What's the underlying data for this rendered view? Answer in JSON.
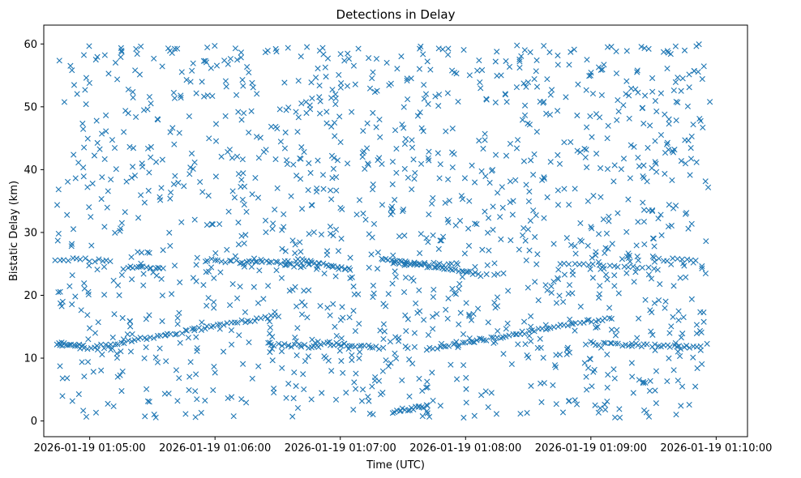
{
  "chart_data": {
    "type": "scatter",
    "title": "Detections in Delay",
    "xlabel": "Time (UTC)",
    "ylabel": "Bistatic Delay (km)",
    "marker": "x",
    "color": "#1f77b4",
    "xlim_seconds": [
      -22,
      315
    ],
    "ylim": [
      -2.5,
      63
    ],
    "x_ticks": [
      {
        "value": 0,
        "label": "2026-01-19 01:05:00"
      },
      {
        "value": 60,
        "label": "2026-01-19 01:06:00"
      },
      {
        "value": 120,
        "label": "2026-01-19 01:07:00"
      },
      {
        "value": 180,
        "label": "2026-01-19 01:08:00"
      },
      {
        "value": 240,
        "label": "2026-01-19 01:09:00"
      },
      {
        "value": 300,
        "label": "2026-01-19 01:10:00"
      }
    ],
    "y_ticks": [
      {
        "value": 0,
        "label": "0"
      },
      {
        "value": 10,
        "label": "10"
      },
      {
        "value": 20,
        "label": "20"
      },
      {
        "value": 30,
        "label": "30"
      },
      {
        "value": 40,
        "label": "40"
      },
      {
        "value": 50,
        "label": "50"
      },
      {
        "value": 60,
        "label": "60"
      }
    ],
    "x_range_seconds": [
      -16,
      297
    ],
    "y_range_clutter": [
      0.5,
      60
    ],
    "clutter_count": 1400,
    "tracks": [
      {
        "name": "track-low-1",
        "t_start": -16,
        "t_end": -4,
        "y_start": 12.2,
        "y_end": 12.0,
        "count": 14
      },
      {
        "name": "track-low-2",
        "t_start": -4,
        "t_end": 90,
        "y_start": 11.4,
        "y_end": 16.8,
        "count": 60
      },
      {
        "name": "track-low-3",
        "t_start": 85,
        "t_end": 110,
        "y_start": 12.2,
        "y_end": 11.8,
        "count": 16
      },
      {
        "name": "track-low-4",
        "t_start": 108,
        "t_end": 140,
        "y_start": 12.5,
        "y_end": 11.6,
        "count": 24
      },
      {
        "name": "track-near-zero",
        "t_start": 145,
        "t_end": 162,
        "y_start": 1.5,
        "y_end": 2.4,
        "count": 18
      },
      {
        "name": "track-low-5",
        "t_start": 163,
        "t_end": 250,
        "y_start": 11.4,
        "y_end": 16.5,
        "count": 58
      },
      {
        "name": "track-low-6",
        "t_start": 238,
        "t_end": 292,
        "y_start": 12.4,
        "y_end": 11.7,
        "count": 36
      },
      {
        "name": "track-mid-1",
        "t_start": -16,
        "t_end": 10,
        "y_start": 25.8,
        "y_end": 25.5,
        "count": 14
      },
      {
        "name": "track-mid-2",
        "t_start": 18,
        "t_end": 35,
        "y_start": 24.6,
        "y_end": 24.3,
        "count": 14
      },
      {
        "name": "track-mid-3",
        "t_start": 55,
        "t_end": 80,
        "y_start": 25.6,
        "y_end": 25.2,
        "count": 16
      },
      {
        "name": "track-mid-4",
        "t_start": 80,
        "t_end": 102,
        "y_start": 25.6,
        "y_end": 24.6,
        "count": 16
      },
      {
        "name": "track-mid-5",
        "t_start": 100,
        "t_end": 125,
        "y_start": 25.8,
        "y_end": 24.0,
        "count": 20
      },
      {
        "name": "track-mid-6",
        "t_start": 140,
        "t_end": 185,
        "y_start": 25.8,
        "y_end": 23.5,
        "count": 34
      },
      {
        "name": "track-mid-7",
        "t_start": 145,
        "t_end": 175,
        "y_start": 25.0,
        "y_end": 25.0,
        "count": 18
      },
      {
        "name": "track-mid-8",
        "t_start": 225,
        "t_end": 265,
        "y_start": 25.0,
        "y_end": 24.5,
        "count": 18
      },
      {
        "name": "track-mid-9",
        "t_start": 270,
        "t_end": 290,
        "y_start": 25.8,
        "y_end": 25.5,
        "count": 10
      }
    ]
  }
}
